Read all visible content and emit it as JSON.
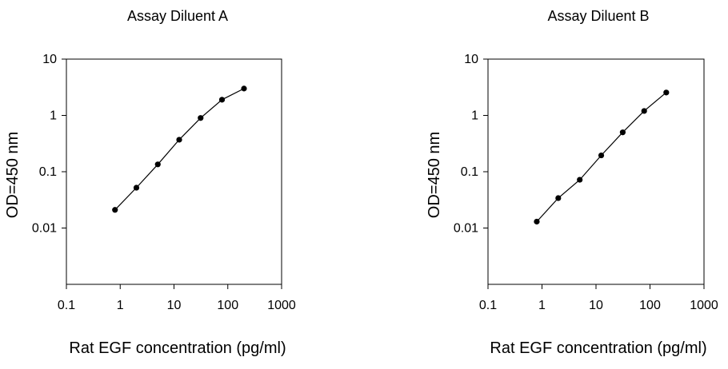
{
  "chart_data": [
    {
      "type": "line",
      "title": "Assay Diluent A",
      "xlabel": "Rat EGF concentration (pg/ml)",
      "ylabel": "OD=450 nm",
      "x_scale": "log",
      "y_scale": "log",
      "xlim": [
        0.1,
        1000
      ],
      "ylim": [
        0.001,
        10
      ],
      "x_ticks": [
        "0.1",
        "1",
        "10",
        "100",
        "1000"
      ],
      "y_ticks": [
        "0.01",
        "0.1",
        "1",
        "10"
      ],
      "grid": false,
      "series": [
        {
          "x": [
            0.8,
            2,
            5,
            12.5,
            31.25,
            78,
            200
          ],
          "y": [
            0.021,
            0.052,
            0.135,
            0.37,
            0.9,
            1.9,
            3.0
          ]
        }
      ]
    },
    {
      "type": "line",
      "title": "Assay Diluent B",
      "xlabel": "Rat EGF concentration (pg/ml)",
      "ylabel": "OD=450 nm",
      "x_scale": "log",
      "y_scale": "log",
      "xlim": [
        0.1,
        1000
      ],
      "ylim": [
        0.001,
        10
      ],
      "x_ticks": [
        "0.1",
        "1",
        "10",
        "100",
        "1000"
      ],
      "y_ticks": [
        "0.01",
        "0.1",
        "1",
        "10"
      ],
      "grid": false,
      "series": [
        {
          "x": [
            0.8,
            2,
            5,
            12.5,
            31.25,
            78,
            200
          ],
          "y": [
            0.013,
            0.034,
            0.072,
            0.195,
            0.5,
            1.2,
            2.55
          ]
        }
      ]
    }
  ]
}
